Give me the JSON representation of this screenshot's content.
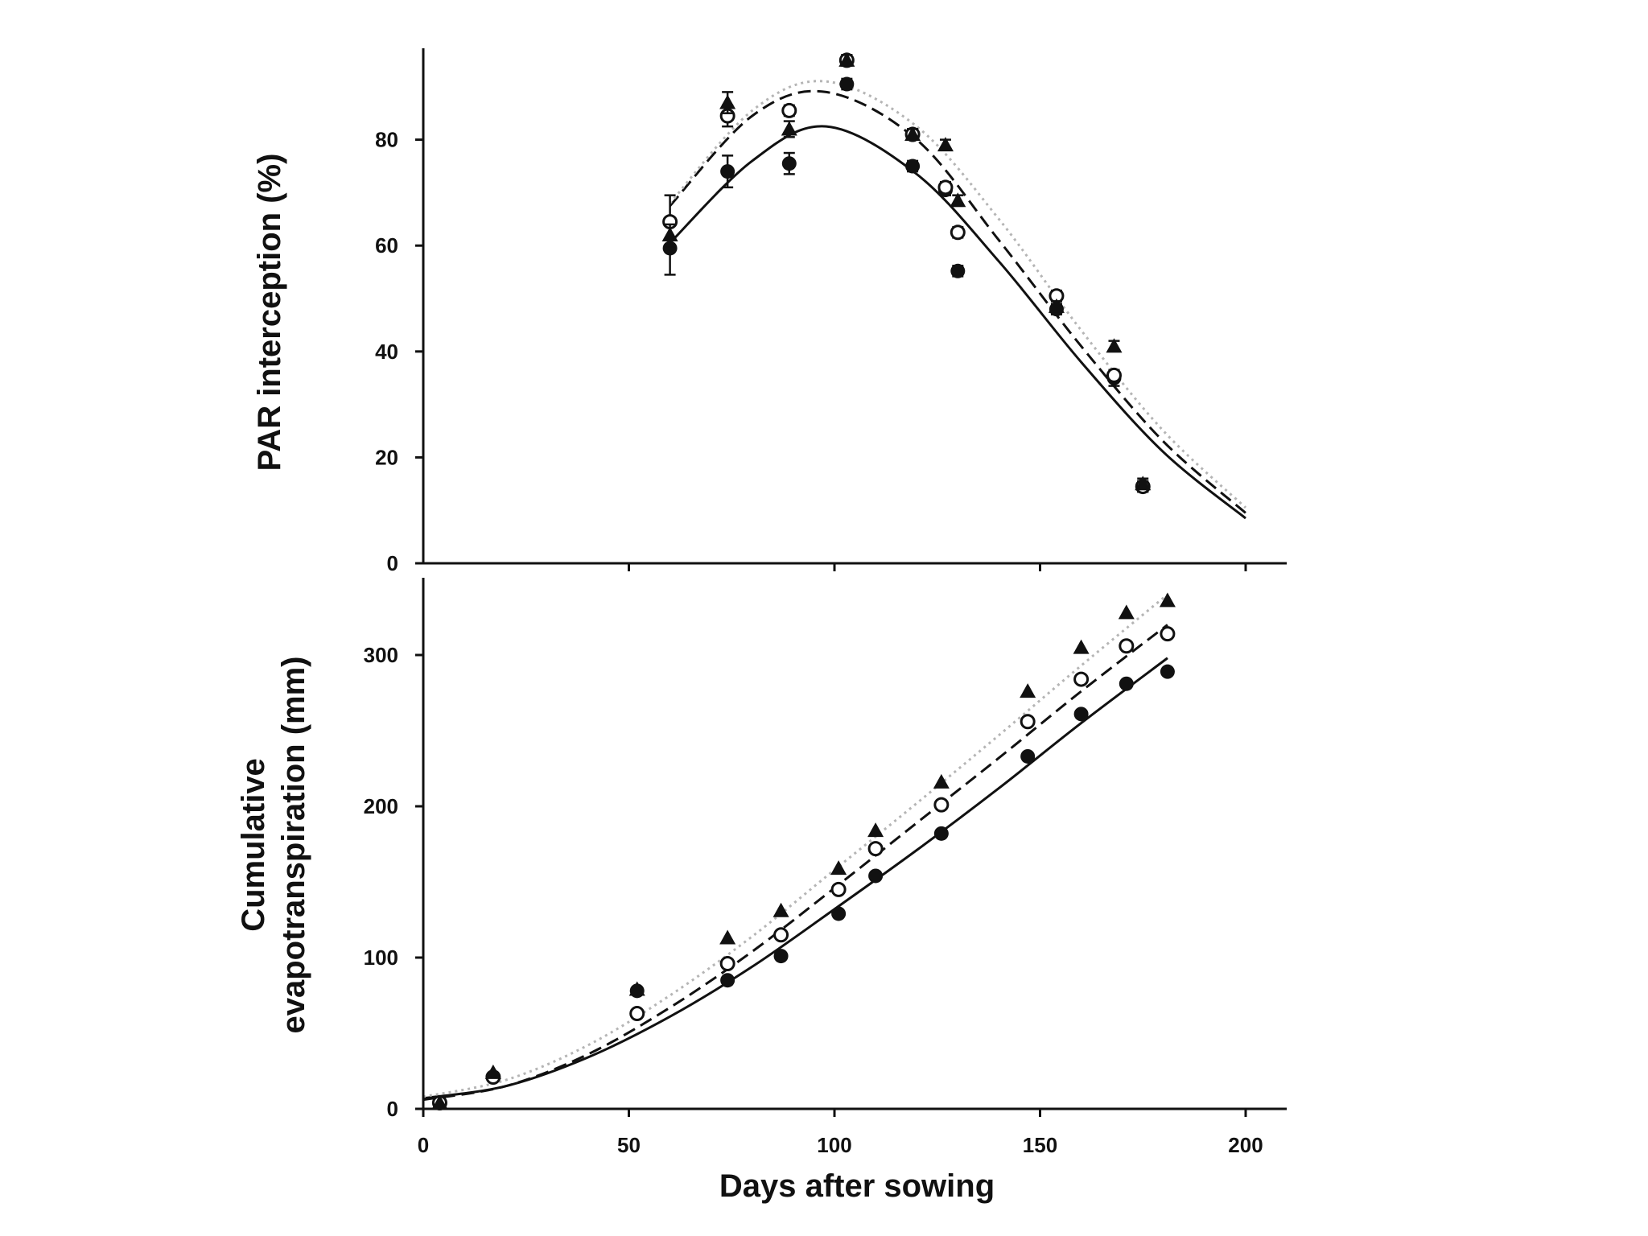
{
  "chart_data": [
    {
      "type": "scatter",
      "ylabel": "PAR interception (%)",
      "xlim": [
        0,
        210
      ],
      "ylim": [
        0,
        97
      ],
      "y_ticks": [
        0,
        20,
        40,
        60,
        80
      ],
      "x_ticks": [
        50,
        100,
        150,
        200
      ],
      "grid": false,
      "legend": "none",
      "series": [
        {
          "marker": "filled-circle",
          "x": [
            60,
            74,
            89,
            103,
            119,
            127,
            130,
            154,
            168,
            175
          ],
          "y": [
            59.5,
            74,
            75.5,
            90.5,
            75,
            70.5,
            55.2,
            48,
            35,
            14.5
          ],
          "err": [
            5,
            3,
            2,
            1,
            1,
            1,
            1,
            1,
            1.5,
            1
          ]
        },
        {
          "marker": "open-circle",
          "x": [
            60,
            74,
            89,
            103,
            119,
            127,
            130,
            154,
            168,
            175
          ],
          "y": [
            64.5,
            84.5,
            85.5,
            95,
            81,
            71,
            62.5,
            50.5,
            35.5,
            14.5
          ],
          "err": [
            5,
            2,
            1,
            1,
            1,
            1,
            1,
            1,
            1,
            1
          ]
        },
        {
          "marker": "filled-triangle",
          "x": [
            60,
            74,
            89,
            103,
            119,
            127,
            130,
            154,
            168,
            175
          ],
          "y": [
            62,
            87,
            82,
            95,
            81,
            79,
            68.5,
            48.5,
            41,
            15
          ],
          "err": [
            2,
            2,
            1.5,
            1,
            1,
            1,
            1,
            1,
            1,
            1
          ]
        }
      ],
      "curves": [
        {
          "style": "solid",
          "x": [
            60,
            80,
            98,
            120,
            140,
            160,
            180,
            200
          ],
          "y": [
            60.5,
            76,
            82.5,
            73.5,
            57,
            38,
            21,
            8.5
          ]
        },
        {
          "style": "dashed",
          "x": [
            60,
            80,
            98,
            120,
            140,
            160,
            180,
            200
          ],
          "y": [
            67.5,
            84.5,
            89,
            80,
            61,
            41,
            23,
            9.5
          ]
        },
        {
          "style": "dotted",
          "x": [
            60,
            80,
            98,
            120,
            140,
            160,
            180,
            200
          ],
          "y": [
            68,
            85.5,
            91,
            82.5,
            65,
            44,
            25,
            10.5
          ]
        }
      ]
    },
    {
      "type": "scatter",
      "ylabel": [
        "Cumulative",
        "evapotranspiration (mm)"
      ],
      "xlabel": "Days after sowing",
      "xlim": [
        0,
        210
      ],
      "ylim": [
        0,
        350
      ],
      "y_ticks": [
        0,
        100,
        200,
        300
      ],
      "x_ticks": [
        0,
        50,
        100,
        150,
        200
      ],
      "grid": false,
      "legend": "none",
      "series": [
        {
          "marker": "filled-circle",
          "x": [
            4,
            17,
            52,
            74,
            87,
            101,
            110,
            126,
            147,
            160,
            171,
            181
          ],
          "y": [
            4,
            21,
            78,
            85,
            101,
            129,
            154,
            182,
            233,
            261,
            281,
            289
          ]
        },
        {
          "marker": "open-circle",
          "x": [
            4,
            17,
            52,
            74,
            87,
            101,
            110,
            126,
            147,
            160,
            171,
            181
          ],
          "y": [
            4,
            21,
            63,
            96,
            115,
            145,
            172,
            201,
            256,
            284,
            306,
            314
          ]
        },
        {
          "marker": "filled-triangle",
          "x": [
            4,
            17,
            52,
            74,
            87,
            101,
            110,
            126,
            147,
            160,
            171,
            181
          ],
          "y": [
            4,
            24,
            79,
            113,
            131,
            159,
            184,
            216,
            276,
            305,
            328,
            336
          ]
        }
      ],
      "curves": [
        {
          "style": "solid",
          "x": [
            0,
            20,
            40,
            60,
            80,
            100,
            120,
            140,
            160,
            181
          ],
          "y": [
            7,
            15,
            34,
            61,
            94,
            132,
            171,
            212,
            255,
            298
          ]
        },
        {
          "style": "dashed",
          "x": [
            0,
            20,
            40,
            60,
            80,
            100,
            120,
            140,
            160,
            181
          ],
          "y": [
            6,
            15,
            36,
            67,
            104,
            146,
            189,
            232,
            276,
            320
          ]
        },
        {
          "style": "dotted",
          "x": [
            0,
            20,
            40,
            60,
            80,
            100,
            120,
            140,
            160,
            181
          ],
          "y": [
            8,
            19,
            42,
            75,
            114,
            158,
            202,
            247,
            293,
            340
          ]
        }
      ]
    }
  ]
}
